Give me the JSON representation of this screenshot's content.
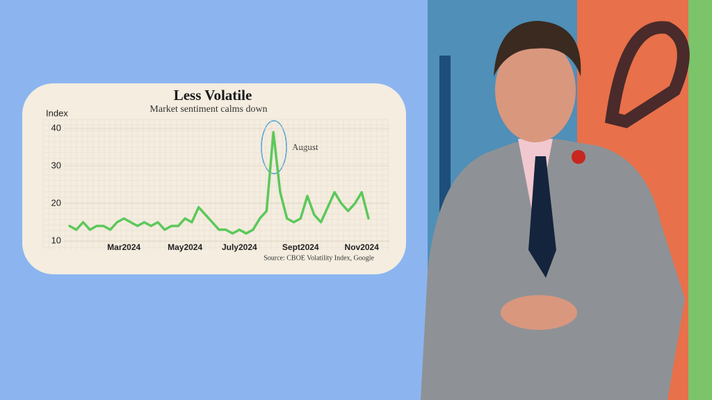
{
  "chart_data": {
    "type": "line",
    "title": "Less Volatile",
    "subtitle": "Market sentiment calms down",
    "y_label": "Index",
    "source": "Source: CBOE Volatility Index, Google",
    "annotation": "August",
    "categories": [
      null,
      null,
      null,
      null,
      null,
      null,
      null,
      null,
      "Mar2024",
      null,
      null,
      null,
      null,
      null,
      null,
      null,
      null,
      "May2024",
      null,
      null,
      null,
      null,
      null,
      null,
      null,
      "July2024",
      null,
      null,
      null,
      null,
      null,
      null,
      null,
      null,
      "Sept2024",
      null,
      null,
      null,
      null,
      null,
      null,
      null,
      null,
      "Nov2024",
      null
    ],
    "values": [
      14,
      13,
      15,
      13,
      14,
      14,
      13,
      15,
      16,
      15,
      14,
      15,
      14,
      15,
      13,
      14,
      14,
      16,
      15,
      19,
      17,
      15,
      13,
      13,
      12,
      13,
      12,
      13,
      16,
      18,
      39,
      23,
      16,
      15,
      16,
      22,
      17,
      15,
      19,
      23,
      20,
      18,
      20,
      23,
      16
    ],
    "color": "#5cc85a",
    "ylim": [
      10,
      40
    ],
    "yticks": [
      10,
      20,
      30,
      40
    ],
    "grid": true
  }
}
